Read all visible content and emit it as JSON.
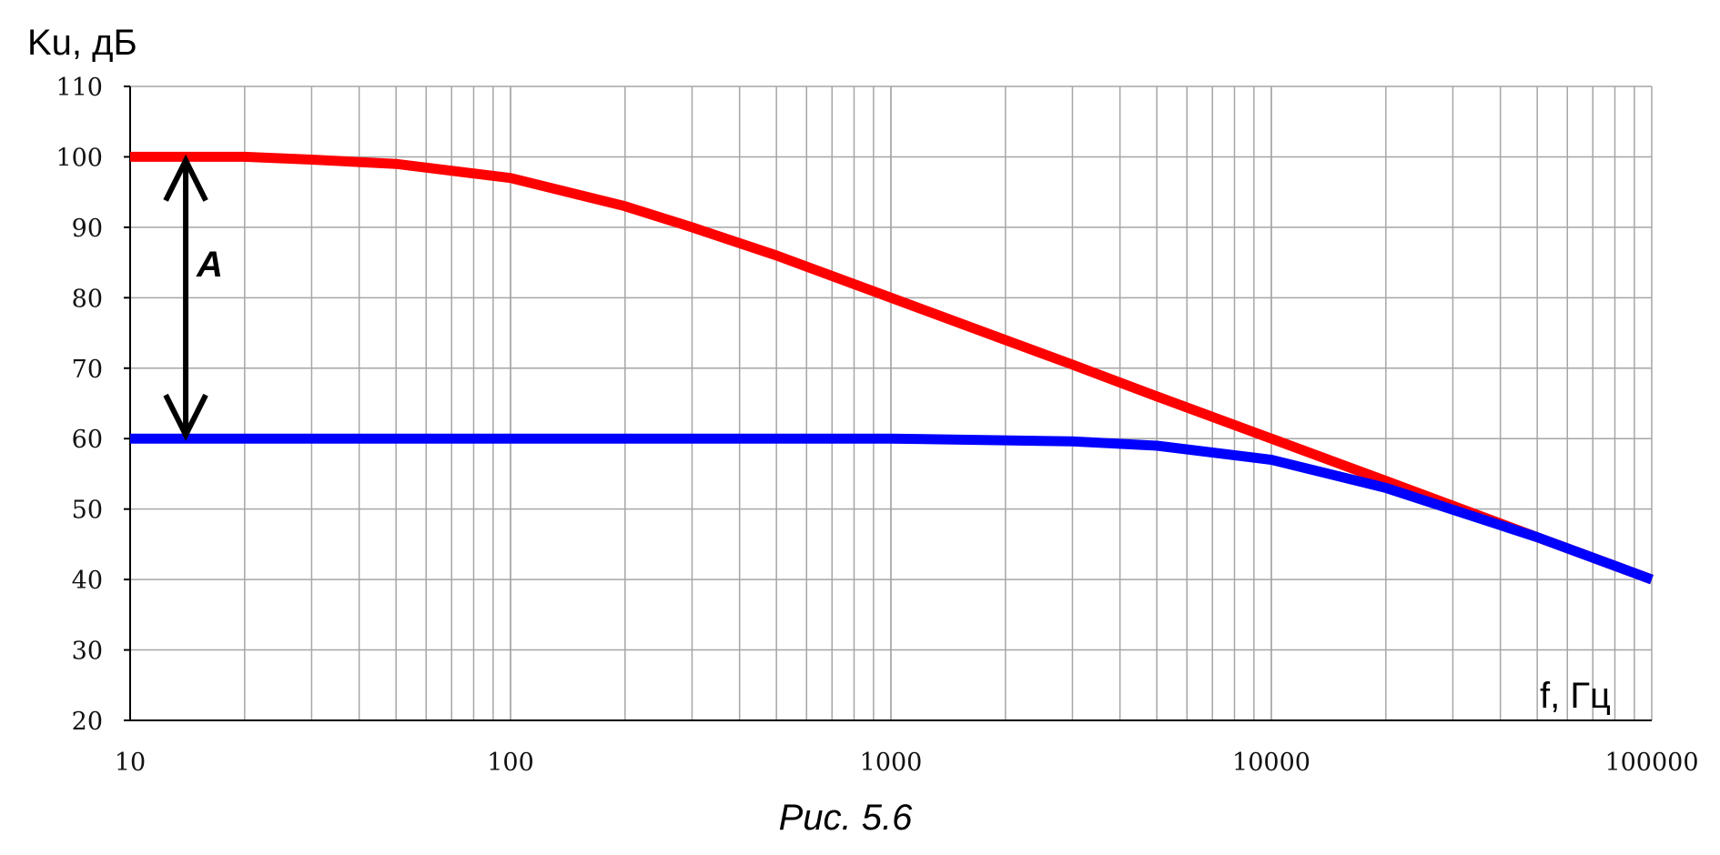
{
  "chart_data": {
    "type": "line",
    "x_scale": "log",
    "xlim": [
      10,
      100000
    ],
    "ylim": [
      20,
      110
    ],
    "grid": true,
    "ylabel": "Ku, дБ",
    "xlabel": "f,  Гц",
    "y_ticks": [
      "20",
      "30",
      "40",
      "50",
      "60",
      "70",
      "80",
      "90",
      "100",
      "110"
    ],
    "x_ticks": [
      "10",
      "100",
      "1000",
      "10000",
      "100000"
    ],
    "caption": "Рис. 5.6",
    "annotation": {
      "text": "A",
      "x": 14,
      "y_from": 60,
      "y_to": 100
    },
    "series": [
      {
        "color": "#ff0000",
        "x": [
          10,
          20,
          30,
          50,
          100,
          200,
          300,
          500,
          1000,
          2000,
          3000,
          5000,
          10000,
          20000,
          50000,
          100000
        ],
        "y": [
          100,
          100,
          99.6,
          99,
          97,
          93,
          90,
          86,
          80,
          74,
          70.5,
          66,
          60,
          54,
          46,
          40
        ]
      },
      {
        "color": "#0000ff",
        "x": [
          10,
          100,
          1000,
          3000,
          5000,
          10000,
          20000,
          50000,
          100000
        ],
        "y": [
          60,
          60,
          60,
          59.6,
          59,
          57,
          53,
          46,
          40
        ]
      }
    ]
  }
}
